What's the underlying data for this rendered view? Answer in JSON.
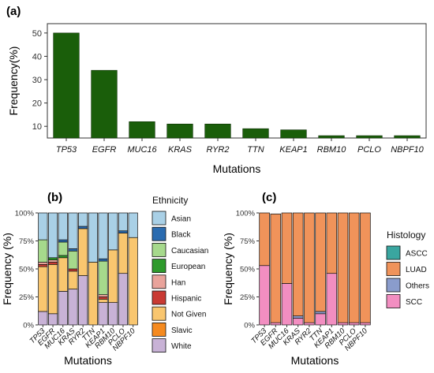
{
  "chart_data": [
    {
      "panel_label": "(a)",
      "type": "bar",
      "xlabel": "Mutations",
      "ylabel": "Frequency(%)",
      "categories": [
        "TP53",
        "EGFR",
        "MUC16",
        "KRAS",
        "RYR2",
        "TTN",
        "KEAP1",
        "RBM10",
        "PCLO",
        "NBPF10"
      ],
      "values": [
        50,
        34,
        12,
        11,
        11,
        9,
        8.5,
        6,
        6,
        6
      ],
      "ylim": [
        5,
        54
      ],
      "yticks": [
        10,
        20,
        30,
        40,
        50
      ],
      "bar_color": "#1a5e0a",
      "grid": false
    },
    {
      "panel_label": "(b)",
      "type": "bar",
      "stacked": true,
      "xlabel": "Mutations",
      "ylabel": "Frequency (%)",
      "legend_title": "Ethnicity",
      "legend_position": "right",
      "categories": [
        "TP53",
        "EGFR",
        "MUC16",
        "KRAS",
        "RYR2",
        "TTN",
        "KEAP1",
        "RBM10",
        "PCLO",
        "NBPF10"
      ],
      "ylim": [
        0,
        100
      ],
      "yticks": [
        "0%",
        "25%",
        "50%",
        "75%",
        "100%"
      ],
      "series": [
        {
          "name": "White",
          "color": "#c8b2d6",
          "values": [
            12,
            10,
            30,
            32,
            44,
            0,
            20,
            20,
            46,
            0
          ]
        },
        {
          "name": "Slavic",
          "color": "#f58a1f",
          "values": [
            0,
            0,
            0,
            0,
            0,
            0,
            0,
            0,
            0,
            0
          ]
        },
        {
          "name": "Not Given",
          "color": "#f9c66f",
          "values": [
            40,
            44,
            30,
            16,
            42,
            56,
            3,
            47,
            36,
            78
          ]
        },
        {
          "name": "Hispanic",
          "color": "#c93a33",
          "values": [
            2,
            2,
            0,
            2,
            0,
            0,
            2,
            0,
            0,
            0
          ]
        },
        {
          "name": "Han",
          "color": "#e9a39b",
          "values": [
            2,
            2,
            0,
            0,
            0,
            0,
            2,
            0,
            0,
            0
          ]
        },
        {
          "name": "European",
          "color": "#2e9a2c",
          "values": [
            0,
            2,
            2,
            0,
            0,
            0,
            0,
            0,
            0,
            0
          ]
        },
        {
          "name": "Caucasian",
          "color": "#a6d98c",
          "values": [
            20,
            0,
            12,
            16,
            0,
            0,
            30,
            0,
            0,
            0
          ]
        },
        {
          "name": "Black",
          "color": "#2a6bb0",
          "values": [
            0,
            0,
            2,
            2,
            2,
            0,
            2,
            0,
            2,
            0
          ]
        },
        {
          "name": "Asian",
          "color": "#a9d0e6",
          "values": [
            24,
            40,
            24,
            32,
            12,
            44,
            41,
            33,
            16,
            22
          ]
        }
      ],
      "legend_order": [
        "Asian",
        "Black",
        "Caucasian",
        "European",
        "Han",
        "Hispanic",
        "Not Given",
        "Slavic",
        "White"
      ]
    },
    {
      "panel_label": "(c)",
      "type": "bar",
      "stacked": true,
      "xlabel": "Mutations",
      "ylabel": "Frequency (%)",
      "legend_title": "Histology",
      "legend_position": "right",
      "categories": [
        "TP53",
        "EGFR",
        "MUC16",
        "KRAS",
        "RYR2",
        "TTN",
        "KEAP1",
        "RBM10",
        "PCLO",
        "NBPF10"
      ],
      "ylim": [
        0,
        100
      ],
      "yticks": [
        "0%",
        "25%",
        "50%",
        "75%",
        "100%"
      ],
      "series": [
        {
          "name": "SCC",
          "color": "#f28ec1",
          "values": [
            53,
            2,
            37,
            6,
            2,
            10,
            46,
            2,
            2,
            2
          ]
        },
        {
          "name": "Others",
          "color": "#8a9ccc",
          "values": [
            0,
            0,
            0,
            2,
            0,
            2,
            0,
            0,
            0,
            0
          ]
        },
        {
          "name": "LUAD",
          "color": "#f0935a",
          "values": [
            47,
            97,
            63,
            92,
            98,
            88,
            54,
            98,
            98,
            98
          ]
        },
        {
          "name": "ASCC",
          "color": "#3aa6a0",
          "values": [
            0,
            0,
            0,
            0,
            0,
            0,
            0,
            0,
            0,
            0
          ]
        }
      ],
      "legend_order": [
        "ASCC",
        "LUAD",
        "Others",
        "SCC"
      ]
    }
  ]
}
